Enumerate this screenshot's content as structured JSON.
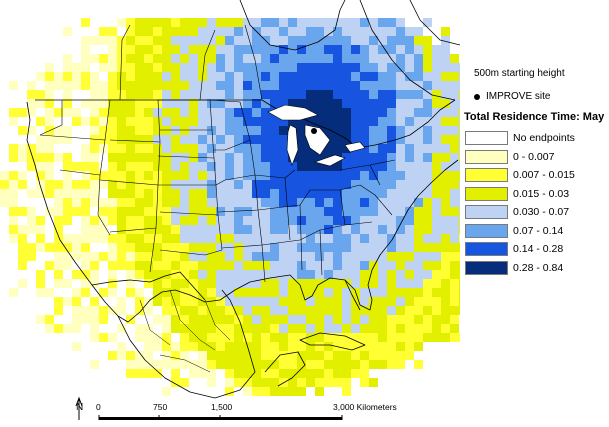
{
  "legend": {
    "starting_height": "500m starting height",
    "site_label": "IMPROVE site",
    "title": "Total Residence Time: May",
    "classes": [
      {
        "label": "No endpoints",
        "color": "#ffffff"
      },
      {
        "label": "0 - 0.007",
        "color": "#ffffc0"
      },
      {
        "label": "0.007 - 0.015",
        "color": "#ffff33"
      },
      {
        "label": "0.015 - 0.03",
        "color": "#e2f000"
      },
      {
        "label": "0.030 - 0.07",
        "color": "#bed2f4"
      },
      {
        "label": "0.07 - 0.14",
        "color": "#6aa6ee"
      },
      {
        "label": "0.14 - 0.28",
        "color": "#1755e0"
      },
      {
        "label": "0.28 - 0.84",
        "color": "#062c7c"
      }
    ]
  },
  "scale_bar": {
    "north": "N",
    "ticks": [
      "0",
      "750",
      "1,500",
      "3,000 Kilometers"
    ]
  },
  "colors": {
    "lake": "#ffffff",
    "boundary": "#000000"
  }
}
